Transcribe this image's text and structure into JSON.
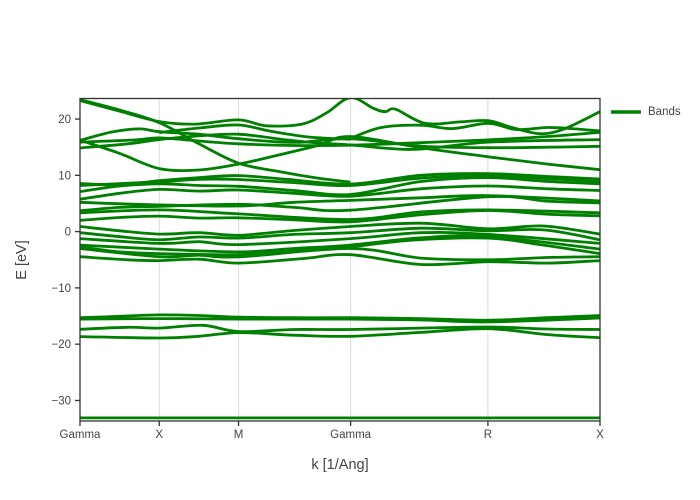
{
  "figure": {
    "legend": {
      "label": "Bands"
    },
    "x_axis": {
      "title": "k [1/Ang]"
    },
    "y_axis": {
      "title": "E [eV]"
    }
  },
  "chart_data": {
    "type": "line",
    "title": "",
    "xlabel": "k [1/Ang]",
    "ylabel": "E [eV]",
    "legend_entries": [
      "Bands"
    ],
    "legend_position": "right",
    "line_color": "#008000",
    "text_color": "#444444",
    "axis_color": "#333333",
    "grid_color": "#dcdcdc",
    "grid": "vertical-at-k-points-only",
    "k_point_labels": [
      "Gamma",
      "X",
      "M",
      "Gamma",
      "R",
      "X"
    ],
    "k_point_positions": [
      0,
      1,
      2,
      3.414,
      5.146,
      6.56
    ],
    "xlim": [
      0,
      6.56
    ],
    "ylim": [
      -33.65,
      23.65
    ],
    "y_tick_values": [
      20,
      10,
      0,
      -10,
      -20,
      -30
    ],
    "y_tick_labels": [
      "20",
      "10",
      "0",
      "−10",
      "−20",
      "−30"
    ],
    "bands": [
      [
        [
          0,
          -33.1
        ],
        [
          3.28,
          -33.1
        ],
        [
          6.56,
          -33.1
        ]
      ],
      [
        [
          0,
          -15.55
        ],
        [
          1,
          -15.45
        ],
        [
          2,
          -15.55
        ],
        [
          3.41,
          -15.55
        ],
        [
          4.3,
          -15.7
        ],
        [
          5.15,
          -16.05
        ],
        [
          6.56,
          -15.35
        ]
      ],
      [
        [
          0,
          -15.3
        ],
        [
          0.5,
          -15.05
        ],
        [
          1,
          -14.8
        ],
        [
          1.5,
          -14.9
        ],
        [
          2,
          -15.2
        ],
        [
          2.7,
          -15.3
        ],
        [
          3.41,
          -15.3
        ],
        [
          4.3,
          -15.45
        ],
        [
          5.15,
          -15.75
        ],
        [
          5.9,
          -15.3
        ],
        [
          6.56,
          -14.9
        ]
      ],
      [
        [
          0,
          -17.35
        ],
        [
          0.6,
          -17.0
        ],
        [
          1,
          -17.15
        ],
        [
          1.55,
          -16.65
        ],
        [
          2,
          -17.75
        ],
        [
          2.7,
          -17.4
        ],
        [
          3.41,
          -17.4
        ],
        [
          4.3,
          -17.15
        ],
        [
          5.15,
          -16.95
        ],
        [
          5.9,
          -17.3
        ],
        [
          6.56,
          -17.4
        ]
      ],
      [
        [
          0,
          -18.65
        ],
        [
          1,
          -18.9
        ],
        [
          1.5,
          -18.6
        ],
        [
          2,
          -17.95
        ],
        [
          2.7,
          -18.4
        ],
        [
          3.41,
          -18.6
        ],
        [
          4.3,
          -17.9
        ],
        [
          5.15,
          -17.25
        ],
        [
          5.9,
          -18.3
        ],
        [
          6.56,
          -18.85
        ]
      ],
      [
        [
          0,
          0.9
        ],
        [
          0.5,
          0.15
        ],
        [
          1,
          -0.45
        ],
        [
          1.5,
          -0.2
        ],
        [
          2,
          -0.65
        ],
        [
          2.7,
          0.2
        ],
        [
          3.41,
          0.9
        ],
        [
          4.3,
          1.5
        ],
        [
          5.15,
          0.5
        ],
        [
          5.85,
          1.0
        ],
        [
          6.56,
          -0.45
        ]
      ],
      [
        [
          0,
          -0.2
        ],
        [
          0.5,
          -0.9
        ],
        [
          1,
          -1.45
        ],
        [
          1.5,
          -0.95
        ],
        [
          2,
          -1.15
        ],
        [
          2.7,
          -0.5
        ],
        [
          3.41,
          -0.2
        ],
        [
          4.3,
          0.6
        ],
        [
          5.15,
          0.15
        ],
        [
          5.85,
          0.3
        ],
        [
          6.56,
          -1.45
        ]
      ],
      [
        [
          0,
          -1.25
        ],
        [
          1,
          -2.1
        ],
        [
          1.5,
          -1.8
        ],
        [
          2,
          -2.3
        ],
        [
          3.41,
          -1.25
        ],
        [
          4.3,
          -0.2
        ],
        [
          5.15,
          -0.5
        ],
        [
          6.56,
          -2.1
        ]
      ],
      [
        [
          0,
          -2.4
        ],
        [
          1,
          -3.1
        ],
        [
          2,
          -3.6
        ],
        [
          2.7,
          -3.0
        ],
        [
          3.41,
          -2.4
        ],
        [
          4.3,
          -1.1
        ],
        [
          5.15,
          -0.85
        ],
        [
          6.56,
          -3.1
        ]
      ],
      [
        [
          0,
          -2.7
        ],
        [
          0.5,
          -3.6
        ],
        [
          1,
          -3.9
        ],
        [
          2,
          -4.1
        ],
        [
          2.7,
          -3.4
        ],
        [
          3.41,
          -2.7
        ],
        [
          4.2,
          -1.5
        ],
        [
          5.15,
          -1.15
        ],
        [
          5.8,
          -2.3
        ],
        [
          6.56,
          -3.9
        ]
      ],
      [
        [
          0,
          -3.0
        ],
        [
          1,
          -4.45
        ],
        [
          1.5,
          -4.2
        ],
        [
          2,
          -4.5
        ],
        [
          3.41,
          -3.0
        ],
        [
          4.3,
          -4.7
        ],
        [
          5.15,
          -5.0
        ],
        [
          5.9,
          -4.6
        ],
        [
          6.56,
          -4.45
        ]
      ],
      [
        [
          0,
          -4.45
        ],
        [
          0.6,
          -5.0
        ],
        [
          1,
          -5.15
        ],
        [
          1.5,
          -4.9
        ],
        [
          2,
          -5.6
        ],
        [
          2.8,
          -4.8
        ],
        [
          3.41,
          -4.1
        ],
        [
          4.3,
          -5.85
        ],
        [
          5.15,
          -5.35
        ],
        [
          5.9,
          -5.6
        ],
        [
          6.56,
          -5.15
        ]
      ],
      [
        [
          0,
          2.0
        ],
        [
          0.5,
          2.5
        ],
        [
          1,
          2.75
        ],
        [
          1.5,
          2.4
        ],
        [
          2,
          2.45
        ],
        [
          2.7,
          2.1
        ],
        [
          3.41,
          1.75
        ],
        [
          4.3,
          3.0
        ],
        [
          5.15,
          3.75
        ],
        [
          5.9,
          3.1
        ],
        [
          6.56,
          2.8
        ]
      ],
      [
        [
          0,
          3.35
        ],
        [
          1,
          3.85
        ],
        [
          2,
          3.15
        ],
        [
          3.41,
          2.15
        ],
        [
          4.3,
          3.5
        ],
        [
          5.15,
          3.85
        ],
        [
          6.56,
          3.35
        ]
      ],
      [
        [
          0,
          3.7
        ],
        [
          0.5,
          4.3
        ],
        [
          1,
          4.5
        ],
        [
          2,
          4.85
        ],
        [
          2.7,
          4.3
        ],
        [
          3.41,
          3.8
        ],
        [
          5.15,
          6.2
        ],
        [
          5.9,
          5.4
        ],
        [
          6.56,
          5.1
        ]
      ],
      [
        [
          0,
          5.2
        ],
        [
          1,
          4.75
        ],
        [
          2,
          4.55
        ],
        [
          2.7,
          5.2
        ],
        [
          3.41,
          5.55
        ],
        [
          4.3,
          6.0
        ],
        [
          5.15,
          6.4
        ],
        [
          6.56,
          5.45
        ]
      ],
      [
        [
          0,
          5.75
        ],
        [
          0.5,
          6.8
        ],
        [
          1,
          7.5
        ],
        [
          1.5,
          7.2
        ],
        [
          2,
          7.4
        ],
        [
          2.7,
          6.8
        ],
        [
          3.41,
          6.3
        ],
        [
          4.3,
          7.6
        ],
        [
          5.15,
          8.1
        ],
        [
          5.9,
          7.6
        ],
        [
          6.56,
          7.3
        ]
      ],
      [
        [
          0,
          7.1
        ],
        [
          0.5,
          8.1
        ],
        [
          1,
          8.5
        ],
        [
          1.5,
          8.2
        ],
        [
          2,
          8.05
        ],
        [
          2.7,
          7.3
        ],
        [
          3.41,
          6.6
        ],
        [
          4.3,
          8.9
        ],
        [
          5.15,
          9.6
        ],
        [
          5.9,
          8.9
        ],
        [
          6.56,
          8.5
        ]
      ],
      [
        [
          0,
          8.2
        ],
        [
          1,
          8.85
        ],
        [
          1.5,
          9.3
        ],
        [
          2,
          9.25
        ],
        [
          2.7,
          8.7
        ],
        [
          3.41,
          8.2
        ],
        [
          4.3,
          9.5
        ],
        [
          5.15,
          9.9
        ],
        [
          5.9,
          9.4
        ],
        [
          6.56,
          8.95
        ]
      ],
      [
        [
          0,
          8.55
        ],
        [
          0.5,
          8.3
        ],
        [
          1,
          9.05
        ],
        [
          1.5,
          9.6
        ],
        [
          2,
          9.95
        ],
        [
          2.6,
          9.3
        ],
        [
          3.41,
          8.45
        ],
        [
          4.3,
          10.0
        ],
        [
          5.15,
          10.3
        ],
        [
          5.9,
          9.8
        ],
        [
          6.56,
          9.35
        ]
      ],
      [
        [
          0,
          23.45
        ],
        [
          0.5,
          21.6
        ],
        [
          1,
          19.35
        ],
        [
          1.5,
          15.6
        ],
        [
          2,
          12.15
        ],
        [
          2.5,
          10.7
        ],
        [
          3,
          9.5
        ],
        [
          3.41,
          8.8
        ]
      ],
      [
        [
          0,
          16.25
        ],
        [
          0.5,
          13.9
        ],
        [
          1,
          11.2
        ],
        [
          1.5,
          10.95
        ],
        [
          2,
          12.0
        ],
        [
          2.5,
          13.6
        ],
        [
          3,
          15.3
        ],
        [
          3.41,
          16.9
        ],
        [
          4.3,
          14.9
        ],
        [
          5.15,
          13.3
        ],
        [
          5.9,
          12.0
        ],
        [
          6.56,
          11.0
        ]
      ],
      [
        [
          0,
          16.2
        ],
        [
          0.4,
          17.7
        ],
        [
          0.75,
          18.25
        ],
        [
          1,
          17.75
        ],
        [
          1.5,
          17.3
        ],
        [
          2,
          16.5
        ],
        [
          2.7,
          15.85
        ],
        [
          3.41,
          16.5
        ],
        [
          4.3,
          15.2
        ],
        [
          5.15,
          14.9
        ],
        [
          5.9,
          15.0
        ],
        [
          6.56,
          15.15
        ]
      ],
      [
        [
          0,
          15.9
        ],
        [
          0.7,
          16.3
        ],
        [
          1,
          16.65
        ],
        [
          1.5,
          16.1
        ],
        [
          2,
          15.6
        ],
        [
          2.7,
          15.3
        ],
        [
          3.41,
          15.35
        ],
        [
          4.3,
          15.8
        ],
        [
          5.15,
          16.3
        ],
        [
          5.9,
          16.9
        ],
        [
          6.56,
          17.65
        ]
      ],
      [
        [
          0,
          14.85
        ],
        [
          0.6,
          15.6
        ],
        [
          1,
          16.35
        ],
        [
          1.5,
          17.0
        ],
        [
          2,
          17.3
        ],
        [
          2.6,
          16.3
        ],
        [
          3,
          15.75
        ],
        [
          3.41,
          15.4
        ],
        [
          4.2,
          14.6
        ],
        [
          5.15,
          15.9
        ],
        [
          6.56,
          16.35
        ]
      ],
      [
        [
          0,
          23.3
        ],
        [
          0.5,
          21.4
        ],
        [
          1,
          19.55
        ],
        [
          1.45,
          19.1
        ],
        [
          2,
          19.85
        ],
        [
          2.35,
          18.8
        ],
        [
          2.8,
          19.1
        ],
        [
          3.1,
          21.0
        ],
        [
          3.41,
          23.8
        ],
        [
          3.7,
          21.9
        ],
        [
          3.85,
          21.3
        ],
        [
          3.98,
          21.75
        ],
        [
          4.35,
          19.25
        ],
        [
          4.8,
          19.5
        ],
        [
          5.15,
          19.7
        ],
        [
          5.45,
          18.5
        ],
        [
          5.8,
          17.4
        ],
        [
          6.1,
          18.2
        ],
        [
          6.56,
          21.3
        ]
      ],
      [
        [
          3.41,
          16.55
        ],
        [
          3.8,
          18.5
        ],
        [
          4.3,
          18.9
        ],
        [
          4.7,
          18.3
        ],
        [
          5.15,
          19.25
        ],
        [
          5.5,
          18.15
        ],
        [
          5.9,
          18.5
        ],
        [
          6.2,
          18.3
        ],
        [
          6.56,
          17.9
        ]
      ],
      [
        [
          1,
          17.6
        ],
        [
          1.5,
          18.4
        ],
        [
          2,
          18.95
        ],
        [
          2.4,
          17.85
        ],
        [
          2.9,
          16.8
        ],
        [
          3.41,
          16.4
        ]
      ]
    ]
  }
}
